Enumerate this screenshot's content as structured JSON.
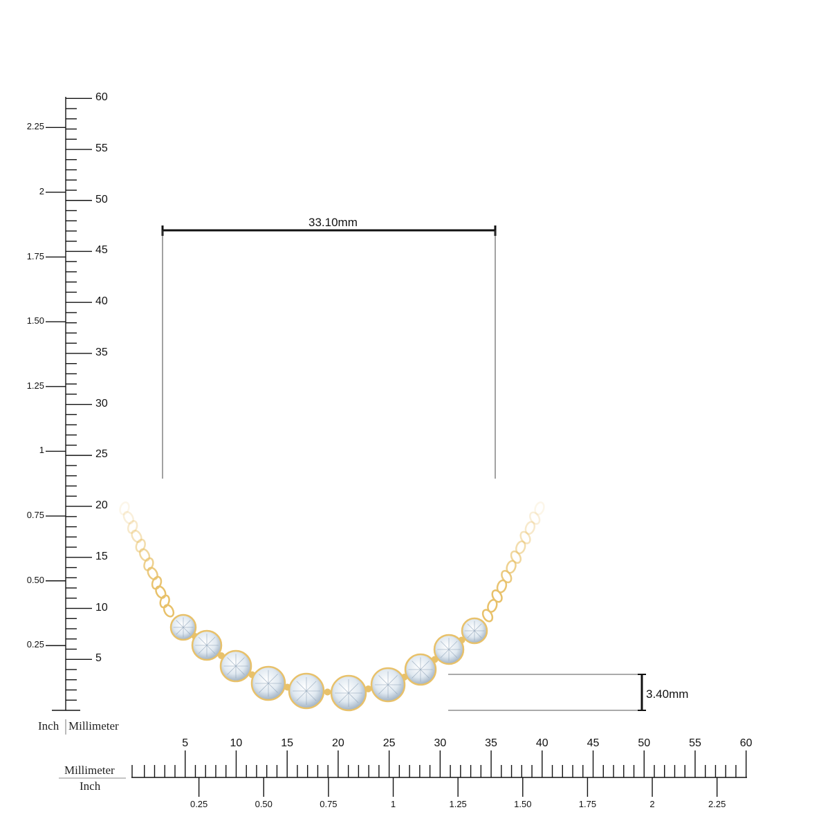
{
  "vertical_ruler": {
    "mm_labels": [
      "5",
      "10",
      "15",
      "20",
      "25",
      "30",
      "35",
      "40",
      "45",
      "50",
      "55",
      "60"
    ],
    "inch_labels": [
      "0.25",
      "0.50",
      "0.75",
      "1",
      "1.25",
      "1.50",
      "1.75",
      "2",
      "2.25"
    ],
    "unit_left": "Inch",
    "unit_right": "Millimeter"
  },
  "horizontal_ruler": {
    "mm_labels": [
      "5",
      "10",
      "15",
      "20",
      "25",
      "30",
      "35",
      "40",
      "45",
      "50",
      "55",
      "60"
    ],
    "inch_labels": [
      "0.25",
      "0.50",
      "0.75",
      "1",
      "1.25",
      "1.50",
      "1.75",
      "2",
      "2.25"
    ],
    "unit_top": "Millimeter",
    "unit_bottom": "Inch"
  },
  "dimensions": {
    "width": "33.10mm",
    "height": "3.40mm"
  },
  "product": {
    "metal_color": "#e8c16a",
    "stone_color": "#dfe8f0",
    "stone_count": 10
  }
}
